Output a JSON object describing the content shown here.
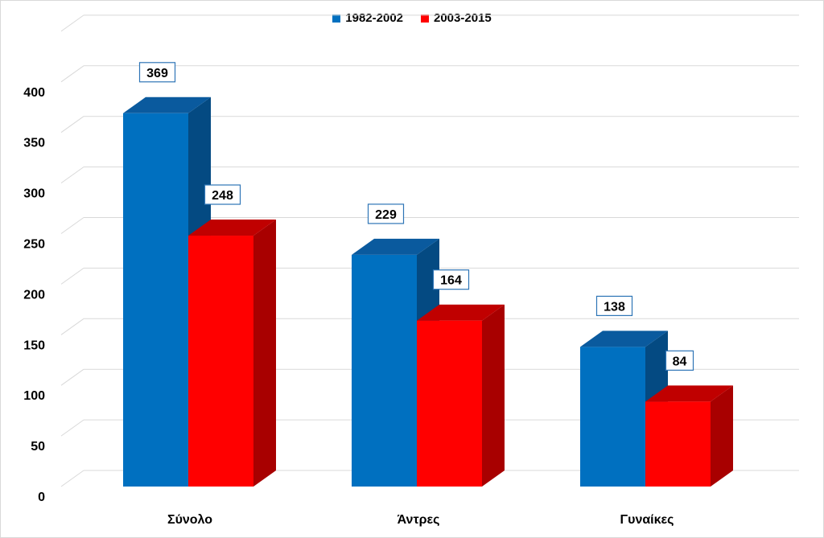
{
  "chart_data": {
    "type": "bar",
    "categories": [
      "Σύνολο",
      "Άντρες",
      "Γυναίκες"
    ],
    "series": [
      {
        "name": "1982-2002",
        "values": [
          369,
          229,
          138
        ],
        "color": "#0070C0",
        "side_color": "#044A82",
        "top_color": "#0A5A9E"
      },
      {
        "name": "2003-2015",
        "values": [
          248,
          164,
          84
        ],
        "color": "#FF0000",
        "side_color": "#A80000",
        "top_color": "#C00000"
      }
    ],
    "ylim": [
      0,
      400
    ],
    "yticks": [
      "0",
      "50",
      "100",
      "150",
      "200",
      "250",
      "300",
      "350",
      "400"
    ],
    "grid": true,
    "legend": "top-center",
    "data_labels": true
  }
}
